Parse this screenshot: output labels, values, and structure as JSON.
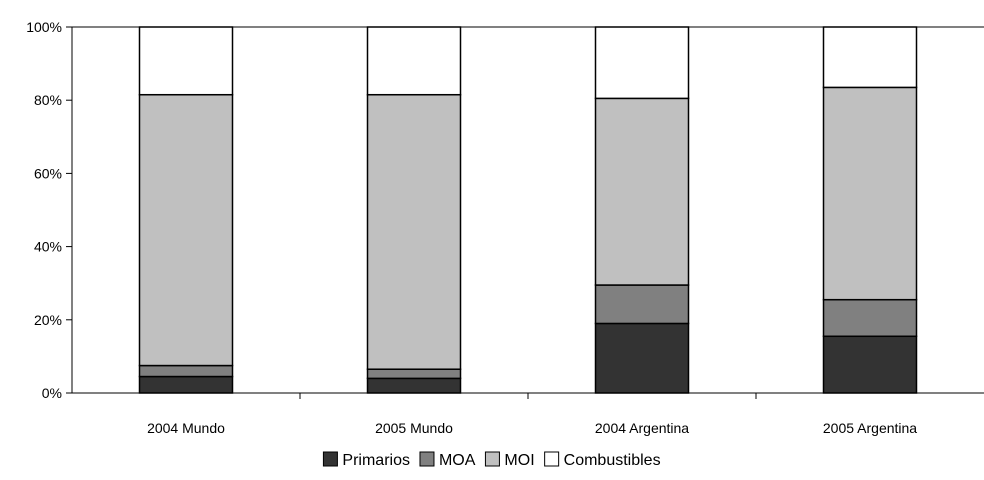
{
  "chart_data": {
    "type": "bar",
    "stacked": true,
    "percent_stacked": true,
    "categories": [
      "2004  Mundo",
      "2005 Mundo",
      "2004 Argentina",
      "2005 Argentina"
    ],
    "series": [
      {
        "name": "Primarios",
        "color": "#333333",
        "values": [
          4.5,
          4,
          19,
          15.5
        ]
      },
      {
        "name": "MOA",
        "color": "#808080",
        "values": [
          3,
          2.5,
          10.5,
          10
        ]
      },
      {
        "name": "MOI",
        "color": "#c0c0c0",
        "values": [
          74,
          75,
          51,
          58
        ]
      },
      {
        "name": "Combustibles",
        "color": "#ffffff",
        "values": [
          18.5,
          18.5,
          19.5,
          16.5
        ]
      }
    ],
    "yticks": [
      "0%",
      "20%",
      "40%",
      "60%",
      "80%",
      "100%"
    ],
    "ylim": [
      0,
      100
    ],
    "title": "",
    "xlabel": "",
    "ylabel": "",
    "grid": false,
    "legend_position": "bottom"
  }
}
